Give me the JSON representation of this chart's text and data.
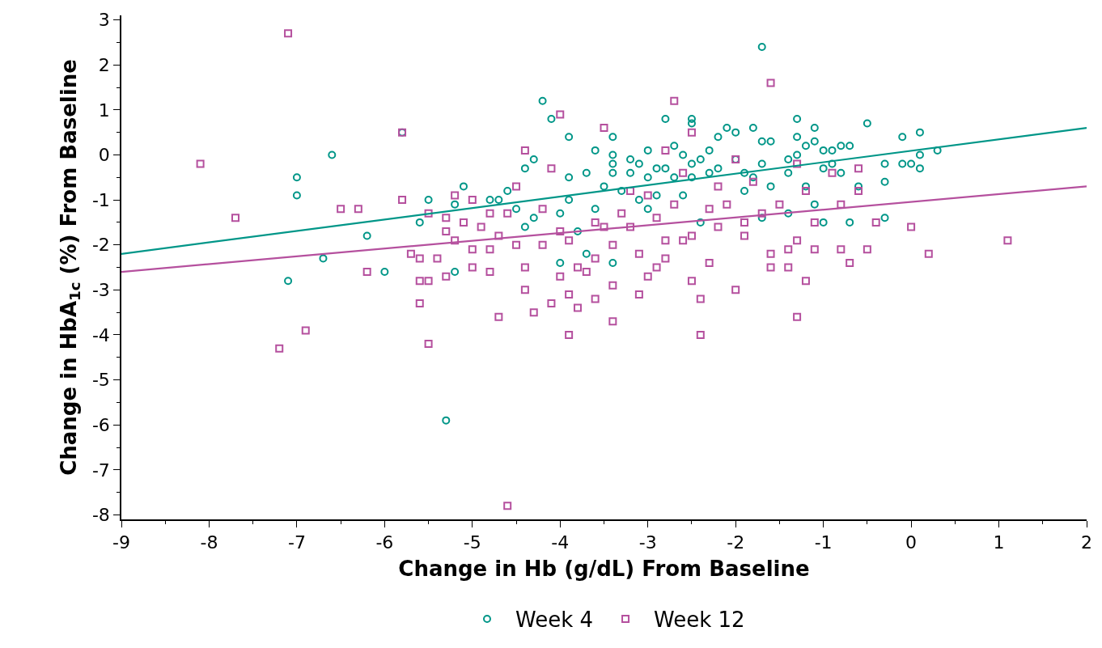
{
  "chart_data": {
    "type": "scatter",
    "xlabel": "Change in Hb (g/dL) From Baseline",
    "ylabel": "Change in HbA$_{1c}$ (%) From Baseline",
    "xlim": [
      -9,
      2
    ],
    "xticks": [
      -9,
      -8,
      -7,
      -6,
      -5,
      -4,
      -3,
      -2,
      -1,
      0,
      1,
      2
    ],
    "ylim": [
      -8.1,
      3.1
    ],
    "yticks": [
      -8,
      -7,
      -6,
      -5,
      -4,
      -3,
      -2,
      -1,
      0,
      1,
      2,
      3
    ],
    "grid": false,
    "legend": "bottom",
    "series": [
      {
        "name": "Week 4",
        "color": "#009688",
        "marker": "circle",
        "x": [
          -7.0,
          -7.0,
          -6.6,
          -7.1,
          -6.7,
          -6.2,
          -6.0,
          -5.6,
          -5.5,
          -5.3,
          -5.2,
          -5.2,
          -5.1,
          -4.8,
          -4.7,
          -4.6,
          -4.5,
          -4.4,
          -4.4,
          -4.3,
          -4.3,
          -4.2,
          -4.1,
          -4.0,
          -4.0,
          -3.9,
          -3.9,
          -3.9,
          -3.8,
          -3.7,
          -3.7,
          -3.6,
          -3.6,
          -3.5,
          -3.4,
          -3.4,
          -3.4,
          -3.4,
          -3.4,
          -3.3,
          -3.2,
          -3.2,
          -3.1,
          -3.1,
          -3.0,
          -3.0,
          -3.0,
          -2.9,
          -2.9,
          -2.8,
          -2.8,
          -2.7,
          -2.7,
          -2.6,
          -2.6,
          -2.5,
          -2.5,
          -2.5,
          -2.5,
          -2.4,
          -2.4,
          -2.3,
          -2.3,
          -2.2,
          -2.2,
          -2.1,
          -2.0,
          -2.0,
          -1.9,
          -1.9,
          -1.8,
          -1.8,
          -1.7,
          -1.7,
          -1.7,
          -1.7,
          -1.6,
          -1.6,
          -1.4,
          -1.4,
          -1.4,
          -1.3,
          -1.3,
          -1.3,
          -1.2,
          -1.2,
          -1.1,
          -1.1,
          -1.1,
          -1.0,
          -1.0,
          -1.0,
          -0.9,
          -0.9,
          -0.8,
          -0.8,
          -0.7,
          -0.7,
          -0.6,
          -0.5,
          -0.3,
          -0.3,
          -0.3,
          -0.1,
          -0.1,
          0.0,
          0.1,
          0.1,
          0.1,
          0.3,
          -5.8
        ],
        "values": [
          -0.5,
          -0.9,
          0.0,
          -2.8,
          -2.3,
          -1.8,
          -2.6,
          -1.5,
          -1.0,
          -5.9,
          -2.6,
          -1.1,
          -0.7,
          -1.0,
          -1.0,
          -0.8,
          -1.2,
          -0.3,
          -1.6,
          -0.1,
          -1.4,
          1.2,
          0.8,
          -1.3,
          -2.4,
          0.4,
          -0.5,
          -1.0,
          -1.7,
          -0.4,
          -2.2,
          0.1,
          -1.2,
          -0.7,
          0.4,
          0.0,
          -0.2,
          -0.4,
          -2.4,
          -0.8,
          -0.1,
          -0.4,
          -0.2,
          -1.0,
          -0.5,
          0.1,
          -1.2,
          -0.3,
          -0.9,
          0.8,
          -0.3,
          0.2,
          -0.5,
          0.0,
          -0.9,
          0.8,
          0.7,
          -0.2,
          -0.5,
          -0.1,
          -1.5,
          0.1,
          -0.4,
          0.4,
          -0.3,
          0.6,
          0.5,
          -0.1,
          -0.4,
          -0.8,
          0.6,
          -0.5,
          2.4,
          0.3,
          -0.2,
          -1.4,
          0.3,
          -0.7,
          -0.1,
          -0.4,
          -1.3,
          0.8,
          0.4,
          0.0,
          0.2,
          -0.7,
          0.6,
          0.3,
          -1.1,
          0.1,
          -0.3,
          -1.5,
          -0.2,
          0.1,
          0.2,
          -0.4,
          0.2,
          -1.5,
          -0.7,
          0.7,
          -0.2,
          -0.6,
          -1.4,
          0.4,
          -0.2,
          -0.2,
          0.5,
          0.0,
          -0.3,
          0.1,
          0.5
        ]
      },
      {
        "name": "Week 12",
        "color": "#b5509e",
        "marker": "square",
        "x": [
          -8.1,
          -7.7,
          -7.1,
          -7.2,
          -6.9,
          -6.5,
          -6.3,
          -6.2,
          -5.8,
          -5.8,
          -5.7,
          -5.6,
          -5.6,
          -5.6,
          -5.5,
          -5.5,
          -5.5,
          -5.4,
          -5.3,
          -5.3,
          -5.3,
          -5.2,
          -5.2,
          -5.1,
          -5.0,
          -5.0,
          -5.0,
          -4.9,
          -4.8,
          -4.8,
          -4.8,
          -4.7,
          -4.7,
          -4.6,
          -4.6,
          -4.5,
          -4.5,
          -4.4,
          -4.4,
          -4.4,
          -4.3,
          -4.2,
          -4.2,
          -4.1,
          -4.1,
          -4.0,
          -4.0,
          -4.0,
          -3.9,
          -3.9,
          -3.9,
          -3.8,
          -3.8,
          -3.7,
          -3.6,
          -3.6,
          -3.6,
          -3.5,
          -3.5,
          -3.4,
          -3.4,
          -3.4,
          -3.3,
          -3.2,
          -3.2,
          -3.1,
          -3.1,
          -3.0,
          -3.0,
          -2.9,
          -2.9,
          -2.8,
          -2.8,
          -2.8,
          -2.7,
          -2.7,
          -2.6,
          -2.6,
          -2.5,
          -2.5,
          -2.5,
          -2.4,
          -2.4,
          -2.3,
          -2.3,
          -2.2,
          -2.2,
          -2.1,
          -2.0,
          -2.0,
          -1.9,
          -1.9,
          -1.8,
          -1.7,
          -1.6,
          -1.6,
          -1.6,
          -1.5,
          -1.4,
          -1.4,
          -1.3,
          -1.3,
          -1.3,
          -1.2,
          -1.2,
          -1.1,
          -1.1,
          -0.9,
          -0.8,
          -0.8,
          -0.7,
          -0.6,
          -0.6,
          -0.5,
          -0.4,
          0.0,
          0.2,
          1.1
        ],
        "values": [
          -0.2,
          -1.4,
          2.7,
          -4.3,
          -3.9,
          -1.2,
          -1.2,
          -2.6,
          -1.0,
          0.5,
          -2.2,
          -3.3,
          -2.8,
          -2.3,
          -4.2,
          -2.8,
          -1.3,
          -2.3,
          -2.7,
          -1.4,
          -1.7,
          -0.9,
          -1.9,
          -1.5,
          -2.1,
          -2.5,
          -1.0,
          -1.6,
          -1.3,
          -2.1,
          -2.6,
          -3.6,
          -1.8,
          -7.8,
          -1.3,
          -0.7,
          -2.0,
          0.1,
          -2.5,
          -3.0,
          -3.5,
          -2.0,
          -1.2,
          -0.3,
          -3.3,
          0.9,
          -1.7,
          -2.7,
          -4.0,
          -3.1,
          -1.9,
          -2.5,
          -3.4,
          -2.6,
          -1.5,
          -2.3,
          -3.2,
          0.6,
          -1.6,
          -2.0,
          -2.9,
          -3.7,
          -1.3,
          -0.8,
          -1.6,
          -2.2,
          -3.1,
          -0.9,
          -2.7,
          -1.4,
          -2.5,
          0.1,
          -1.9,
          -2.3,
          1.2,
          -1.1,
          -0.4,
          -1.9,
          0.5,
          -1.8,
          -2.8,
          -3.2,
          -4.0,
          -2.4,
          -1.2,
          -0.7,
          -1.6,
          -1.1,
          -3.0,
          -0.1,
          -1.5,
          -1.8,
          -0.6,
          -1.3,
          1.6,
          -2.2,
          -2.5,
          -1.1,
          -2.1,
          -2.5,
          -0.2,
          -1.9,
          -3.6,
          -0.8,
          -2.8,
          -1.5,
          -2.1,
          -0.4,
          -1.1,
          -2.1,
          -2.4,
          -0.3,
          -0.8,
          -2.1,
          -1.5,
          -1.6,
          -2.2,
          -1.9
        ]
      },
      {
        "type": "line",
        "color": "#009688",
        "marker": "none",
        "line_style": "solid",
        "x": [
          -9,
          2
        ],
        "values": [
          -2.2,
          0.6
        ]
      },
      {
        "type": "line",
        "color": "#b5509e",
        "marker": "none",
        "line_style": "solid",
        "x": [
          -9,
          2
        ],
        "values": [
          -2.6,
          -0.7
        ]
      }
    ]
  }
}
